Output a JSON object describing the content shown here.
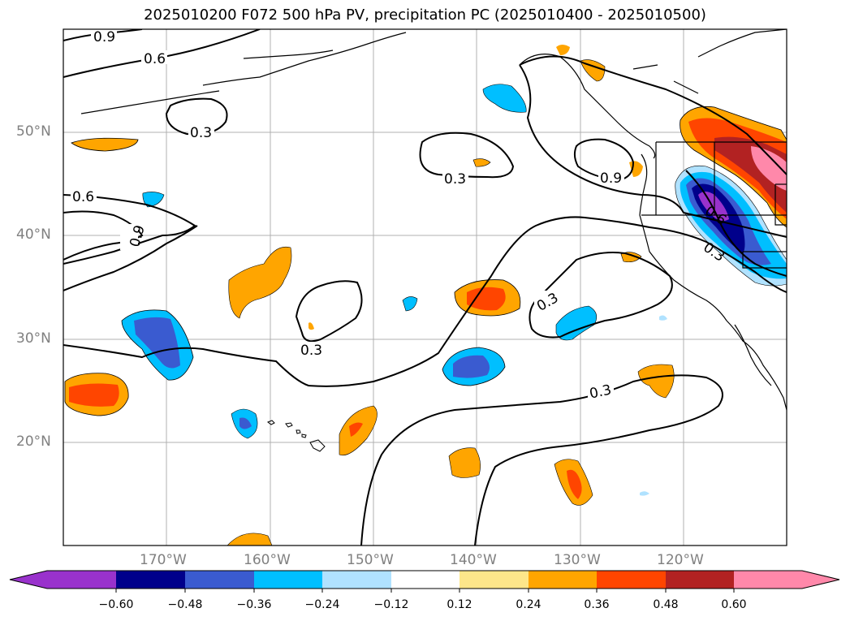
{
  "title": "2025010200 F072 500 hPa PV, precipitation PC (2025010400 - 2025010500)",
  "lat_labels": [
    "50°N",
    "40°N",
    "30°N",
    "20°N"
  ],
  "lon_labels": [
    "170°W",
    "160°W",
    "150°W",
    "140°W",
    "130°W",
    "120°W"
  ],
  "contour_labels": [
    "0.9",
    "0.6",
    "0.3",
    "0.6",
    "0.9",
    "0.3",
    "0.9",
    "0.6",
    "0.3",
    "0.3",
    "0.3",
    "0.3",
    "0.3"
  ],
  "colorbar": {
    "ticks": [
      "−0.60",
      "−0.48",
      "−0.36",
      "−0.24",
      "−0.12",
      "0.12",
      "0.24",
      "0.36",
      "0.48",
      "0.60"
    ],
    "colors": [
      "#9932cc",
      "#00008b",
      "#3a5bd0",
      "#00bfff",
      "#b0e2ff",
      "#ffffff",
      "#fde68a",
      "#ffa500",
      "#ff4500",
      "#b22222",
      "#ff88aa",
      "#ff88aa"
    ]
  }
}
